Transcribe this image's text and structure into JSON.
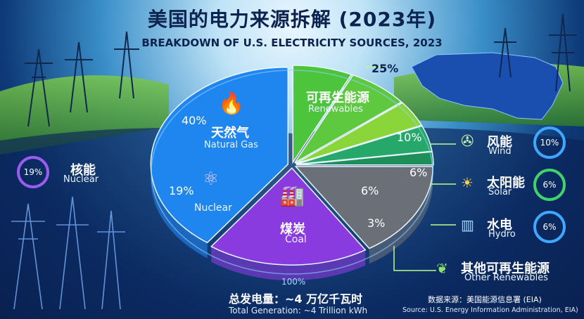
{
  "title_zh": "美国的电力来源拆解 (2023年)",
  "title_en": "BREAKDOWN OF U.S. ELECTRICITY SOURCES, 2023",
  "chart_data": {
    "type": "pie",
    "slices": [
      {
        "zh": "天然气",
        "en": "Natural Gas",
        "value": 40,
        "label": "40%",
        "color": "#1f86f0"
      },
      {
        "zh": "可再生能源",
        "en": "Renewables",
        "value": 25,
        "label": "25%",
        "color": "#3fb950"
      },
      {
        "zh": "煤炭",
        "en": "Coal",
        "value": 16,
        "label": "",
        "color": "#6b6f78"
      },
      {
        "zh": "核能",
        "en": "Nuclear",
        "value": 19,
        "label": "19%",
        "color": "#8a3be0"
      }
    ],
    "renewables_breakdown": [
      {
        "zh": "风能",
        "en": "Wind",
        "value": 10,
        "label": "10%"
      },
      {
        "zh": "太阳能",
        "en": "Solar",
        "value": 6,
        "label": "6%"
      },
      {
        "zh": "水电",
        "en": "Hydro",
        "value": 6,
        "label": "6%"
      },
      {
        "zh": "其他可再生能源",
        "en": "Other Renewables",
        "value": 3,
        "label": "3%"
      }
    ],
    "total_label": "100%"
  },
  "nuclear_side": {
    "zh": "核能",
    "en": "Nuclear",
    "badge": "19%"
  },
  "total_zh": "总发电量：~4 万亿千瓦时",
  "total_en": "Total Generation: ~4 Trillion kWh",
  "source_zh": "数据来源：美国能源信息署 (EIA)",
  "source_en": "Source: U.S. Energy Information Administration, EIA)"
}
